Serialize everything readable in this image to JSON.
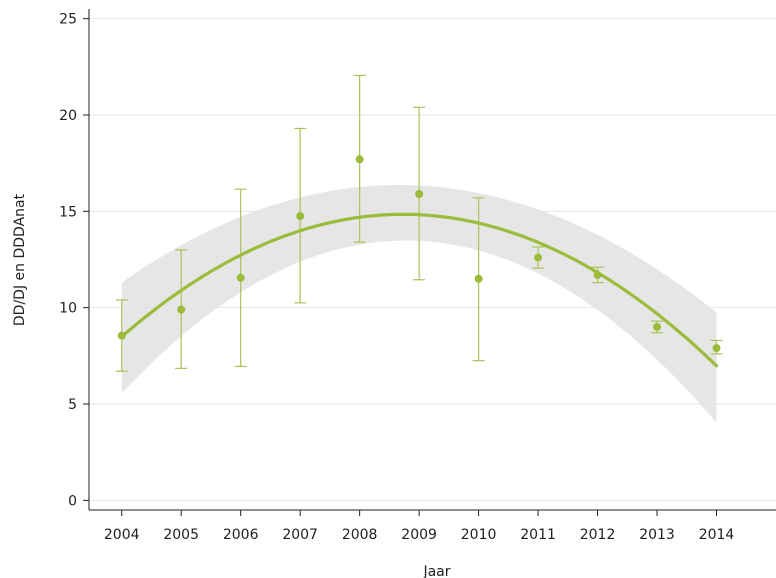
{
  "chart_data": {
    "type": "scatter",
    "title": "",
    "xlabel": "Jaar",
    "ylabel": "DD/DJ en DDDAnat",
    "x": [
      2004,
      2005,
      2006,
      2007,
      2008,
      2009,
      2010,
      2011,
      2012,
      2013,
      2014
    ],
    "x_tick_labels": [
      "2004",
      "2005",
      "2006",
      "2007",
      "2008",
      "2009",
      "2010",
      "2011",
      "2012",
      "2013",
      "2014"
    ],
    "y_ticks": [
      0,
      5,
      10,
      15,
      20,
      25
    ],
    "y_tick_labels": [
      "0",
      "5",
      "10",
      "15",
      "20",
      "25"
    ],
    "xlim": [
      2003.45,
      2015.0
    ],
    "ylim": [
      -0.5,
      25.5
    ],
    "grid": "horizontal",
    "series": [
      {
        "type": "points_with_error_bars",
        "values": [
          8.55,
          9.9,
          11.55,
          14.75,
          17.7,
          15.9,
          11.5,
          12.6,
          11.7,
          9.0,
          7.9
        ],
        "lower": [
          6.7,
          6.85,
          6.95,
          10.25,
          13.4,
          11.45,
          7.25,
          12.05,
          11.3,
          8.7,
          7.6
        ],
        "upper": [
          10.4,
          13.0,
          16.15,
          19.3,
          22.05,
          20.4,
          15.7,
          13.15,
          12.1,
          9.3,
          8.3
        ]
      },
      {
        "type": "quadratic_fit",
        "x": [
          2004,
          2005,
          2006,
          2007,
          2008,
          2009,
          2010,
          2011,
          2012,
          2013,
          2014
        ],
        "values": [
          8.5,
          10.9,
          12.75,
          14.0,
          14.65,
          14.8,
          14.35,
          13.4,
          11.9,
          9.75,
          6.9
        ],
        "band_lower": [
          5.4,
          8.6,
          11.0,
          12.55,
          13.25,
          13.1,
          12.7,
          11.8,
          10.3,
          7.5,
          3.75
        ],
        "band_upper": [
          11.45,
          13.2,
          14.5,
          15.5,
          16.35,
          16.7,
          16.1,
          15.05,
          13.5,
          11.9,
          9.9
        ]
      }
    ],
    "colors": {
      "points": "#9bbb3a",
      "error_bars": "#a9c35a",
      "fit_line": "#9bbb3a",
      "confidence_band": "#e3e3e3",
      "grid": "#e6e6e6",
      "axis": "#222222"
    }
  }
}
